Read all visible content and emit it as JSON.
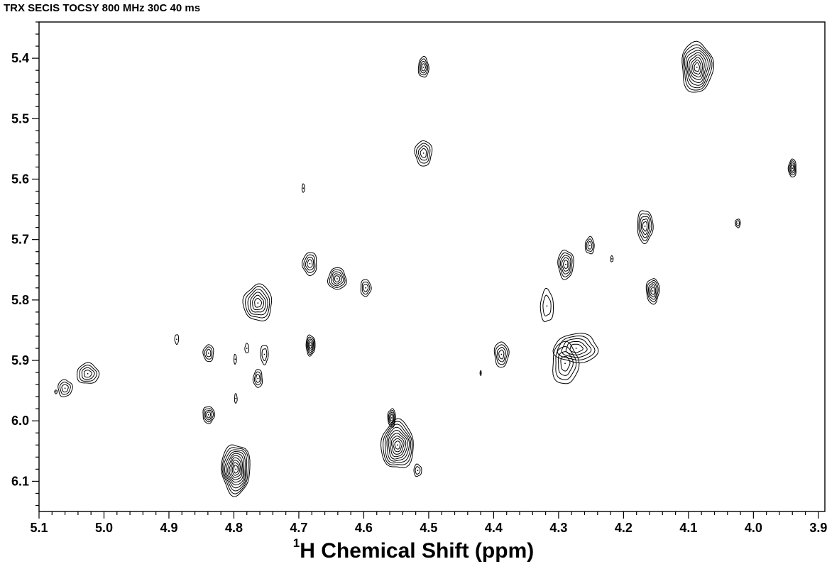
{
  "chart_data": {
    "type": "contour",
    "title": "TRX SECIS TOCSY 800 MHz 30C 40 ms",
    "xlabel": {
      "prefix": "1",
      "text": "H Chemical Shift (ppm)"
    },
    "ylabel": "",
    "xlim": [
      5.1,
      3.89
    ],
    "ylim": [
      5.34,
      6.15
    ],
    "x_axis_reversed": true,
    "y_axis_inverted": true,
    "x_ticks": [
      "5.1",
      "5.0",
      "4.9",
      "4.8",
      "4.7",
      "4.6",
      "4.5",
      "4.4",
      "4.3",
      "4.2",
      "4.1",
      "4.0",
      "3.9"
    ],
    "y_ticks": [
      "5.4",
      "5.5",
      "5.6",
      "5.7",
      "5.8",
      "5.9",
      "6.0",
      "6.1"
    ],
    "line_color": "#000000",
    "peaks": [
      {
        "x": 4.508,
        "y": 5.415,
        "rx": 0.008,
        "ry": 0.017,
        "levels": 4
      },
      {
        "x": 4.087,
        "y": 5.415,
        "rx": 0.024,
        "ry": 0.042,
        "levels": 9
      },
      {
        "x": 4.508,
        "y": 5.557,
        "rx": 0.013,
        "ry": 0.021,
        "levels": 4
      },
      {
        "x": 3.94,
        "y": 5.582,
        "rx": 0.006,
        "ry": 0.015,
        "levels": 4
      },
      {
        "x": 4.693,
        "y": 5.615,
        "rx": 0.002,
        "ry": 0.007,
        "levels": 1
      },
      {
        "x": 4.167,
        "y": 5.678,
        "rx": 0.012,
        "ry": 0.027,
        "levels": 5
      },
      {
        "x": 4.024,
        "y": 5.673,
        "rx": 0.004,
        "ry": 0.007,
        "levels": 2
      },
      {
        "x": 4.252,
        "y": 5.71,
        "rx": 0.007,
        "ry": 0.014,
        "levels": 3
      },
      {
        "x": 4.218,
        "y": 5.732,
        "rx": 0.002,
        "ry": 0.005,
        "levels": 1
      },
      {
        "x": 4.289,
        "y": 5.741,
        "rx": 0.012,
        "ry": 0.024,
        "levels": 5
      },
      {
        "x": 4.683,
        "y": 5.74,
        "rx": 0.011,
        "ry": 0.019,
        "levels": 4
      },
      {
        "x": 4.641,
        "y": 5.765,
        "rx": 0.014,
        "ry": 0.018,
        "levels": 5
      },
      {
        "x": 4.597,
        "y": 5.78,
        "rx": 0.008,
        "ry": 0.014,
        "levels": 3
      },
      {
        "x": 4.155,
        "y": 5.785,
        "rx": 0.01,
        "ry": 0.021,
        "levels": 5
      },
      {
        "x": 4.763,
        "y": 5.805,
        "rx": 0.022,
        "ry": 0.03,
        "levels": 6
      },
      {
        "x": 4.318,
        "y": 5.81,
        "rx": 0.01,
        "ry": 0.027,
        "levels": 2
      },
      {
        "x": 4.682,
        "y": 5.875,
        "rx": 0.007,
        "ry": 0.017,
        "levels": 5
      },
      {
        "x": 4.888,
        "y": 5.865,
        "rx": 0.003,
        "ry": 0.008,
        "levels": 1
      },
      {
        "x": 4.273,
        "y": 5.88,
        "rx": 0.034,
        "ry": 0.024,
        "levels": 5
      },
      {
        "x": 4.29,
        "y": 5.905,
        "rx": 0.02,
        "ry": 0.035,
        "levels": 4
      },
      {
        "x": 4.388,
        "y": 5.89,
        "rx": 0.011,
        "ry": 0.021,
        "levels": 4
      },
      {
        "x": 4.839,
        "y": 5.888,
        "rx": 0.008,
        "ry": 0.014,
        "levels": 3
      },
      {
        "x": 4.78,
        "y": 5.88,
        "rx": 0.003,
        "ry": 0.008,
        "levels": 1
      },
      {
        "x": 4.798,
        "y": 5.898,
        "rx": 0.002,
        "ry": 0.008,
        "levels": 1
      },
      {
        "x": 4.753,
        "y": 5.89,
        "rx": 0.006,
        "ry": 0.016,
        "levels": 2
      },
      {
        "x": 4.42,
        "y": 5.921,
        "rx": 0.001,
        "ry": 0.004,
        "levels": 1
      },
      {
        "x": 5.025,
        "y": 5.922,
        "rx": 0.017,
        "ry": 0.017,
        "levels": 4
      },
      {
        "x": 5.06,
        "y": 5.946,
        "rx": 0.011,
        "ry": 0.014,
        "levels": 3
      },
      {
        "x": 5.074,
        "y": 5.952,
        "rx": 0.002,
        "ry": 0.003,
        "levels": 1
      },
      {
        "x": 4.763,
        "y": 5.93,
        "rx": 0.007,
        "ry": 0.015,
        "levels": 3
      },
      {
        "x": 4.797,
        "y": 5.963,
        "rx": 0.002,
        "ry": 0.008,
        "levels": 1
      },
      {
        "x": 4.839,
        "y": 5.99,
        "rx": 0.009,
        "ry": 0.014,
        "levels": 4
      },
      {
        "x": 4.557,
        "y": 5.995,
        "rx": 0.006,
        "ry": 0.015,
        "levels": 4
      },
      {
        "x": 4.548,
        "y": 6.04,
        "rx": 0.025,
        "ry": 0.04,
        "levels": 9
      },
      {
        "x": 4.517,
        "y": 6.082,
        "rx": 0.006,
        "ry": 0.01,
        "levels": 2
      },
      {
        "x": 4.797,
        "y": 6.08,
        "rx": 0.022,
        "ry": 0.042,
        "levels": 10
      }
    ]
  }
}
